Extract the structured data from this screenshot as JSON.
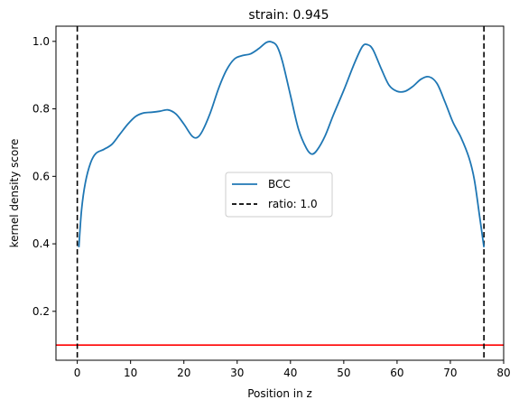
{
  "chart_data": {
    "type": "line",
    "title": "strain: 0.945",
    "xlabel": "Position in z",
    "ylabel": "kernel density score",
    "xlim": [
      -4,
      80
    ],
    "ylim": [
      0.055,
      1.045
    ],
    "xticks": [
      0,
      10,
      20,
      30,
      40,
      50,
      60,
      70,
      80
    ],
    "yticks": [
      0.2,
      0.4,
      0.6,
      0.8,
      1.0
    ],
    "grid": false,
    "legend_position": "center",
    "series": [
      {
        "name": "BCC",
        "color": "#1f77b4",
        "points": [
          [
            0.3,
            0.39
          ],
          [
            0.8,
            0.5
          ],
          [
            1.5,
            0.58
          ],
          [
            2.5,
            0.64
          ],
          [
            3.5,
            0.668
          ],
          [
            5,
            0.68
          ],
          [
            6.5,
            0.695
          ],
          [
            8,
            0.725
          ],
          [
            9.5,
            0.755
          ],
          [
            11,
            0.778
          ],
          [
            12.5,
            0.788
          ],
          [
            14,
            0.79
          ],
          [
            15.5,
            0.793
          ],
          [
            17,
            0.797
          ],
          [
            18.5,
            0.785
          ],
          [
            20,
            0.755
          ],
          [
            21.5,
            0.72
          ],
          [
            22.5,
            0.715
          ],
          [
            23.5,
            0.735
          ],
          [
            25,
            0.79
          ],
          [
            26.5,
            0.86
          ],
          [
            28,
            0.915
          ],
          [
            29.5,
            0.948
          ],
          [
            31,
            0.958
          ],
          [
            32.5,
            0.963
          ],
          [
            34,
            0.978
          ],
          [
            35.5,
            0.997
          ],
          [
            36.5,
            0.998
          ],
          [
            37.5,
            0.985
          ],
          [
            38.5,
            0.94
          ],
          [
            40,
            0.84
          ],
          [
            41.5,
            0.74
          ],
          [
            43,
            0.683
          ],
          [
            44,
            0.666
          ],
          [
            45,
            0.678
          ],
          [
            46.5,
            0.72
          ],
          [
            48,
            0.78
          ],
          [
            50,
            0.855
          ],
          [
            52,
            0.935
          ],
          [
            53.5,
            0.985
          ],
          [
            54.5,
            0.99
          ],
          [
            55.5,
            0.975
          ],
          [
            57,
            0.92
          ],
          [
            58.5,
            0.87
          ],
          [
            60,
            0.852
          ],
          [
            61.5,
            0.852
          ],
          [
            63,
            0.867
          ],
          [
            64.5,
            0.888
          ],
          [
            66,
            0.895
          ],
          [
            67.5,
            0.875
          ],
          [
            69,
            0.82
          ],
          [
            70.5,
            0.76
          ],
          [
            72,
            0.715
          ],
          [
            73.5,
            0.655
          ],
          [
            74.5,
            0.59
          ],
          [
            75.5,
            0.48
          ],
          [
            76.3,
            0.39
          ]
        ]
      },
      {
        "name": "ratio: 1.0",
        "color": "#000000",
        "style": "dashed",
        "vertical_lines_x": [
          0,
          76.3
        ]
      }
    ],
    "threshold_line": {
      "y": 0.1,
      "color": "#ff0000"
    }
  }
}
